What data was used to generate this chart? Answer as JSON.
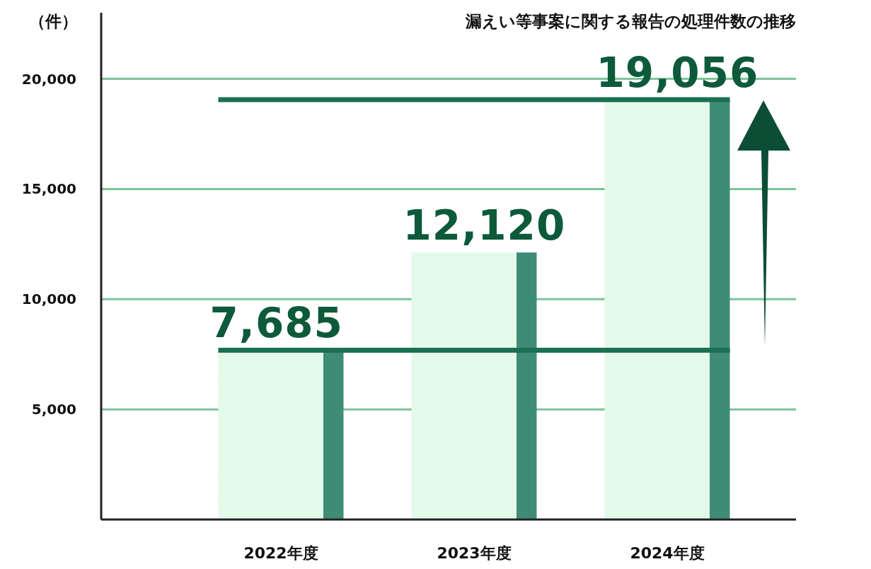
{
  "chart_data": {
    "type": "bar",
    "title": "漏えい等事案に関する報告の処理件数の推移",
    "ylabel": "（件）",
    "categories": [
      "2022年度",
      "2023年度",
      "2024年度"
    ],
    "values": [
      7685,
      12120,
      19056
    ],
    "color": "#e3faea",
    "data_labels": true,
    "value_labels": [
      "7,685",
      "12,120",
      "19,056"
    ],
    "ylim": [
      0,
      23000
    ],
    "yticks": [
      {
        "value": 5000,
        "label": "5,000"
      },
      {
        "value": 10000,
        "label": "10,000"
      },
      {
        "value": 15000,
        "label": "15,000"
      },
      {
        "value": 20000,
        "label": "20,000"
      }
    ],
    "grid": "y",
    "ref_lines": [
      {
        "axis": "y",
        "value": 7685,
        "color": "#1a7052"
      },
      {
        "axis": "y",
        "value": 19056,
        "color": "#1a7052"
      }
    ]
  }
}
